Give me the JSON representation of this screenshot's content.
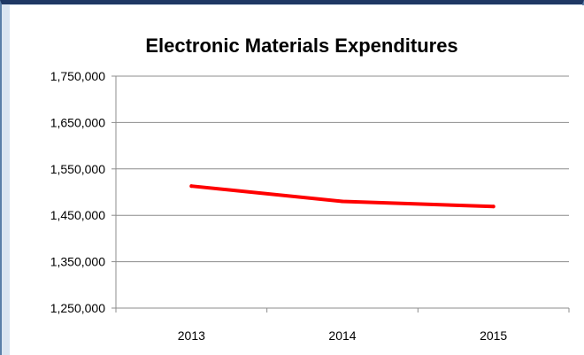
{
  "chart_data": {
    "type": "line",
    "title": "Electronic Materials Expenditures",
    "xlabel": "",
    "ylabel": "",
    "categories": [
      "2013",
      "2014",
      "2015"
    ],
    "series": [
      {
        "values": [
          1513000,
          1480000,
          1469000
        ],
        "color": "#ff0000"
      }
    ],
    "ylim": [
      1250000,
      1750000
    ],
    "yticks": [
      1250000,
      1350000,
      1450000,
      1550000,
      1650000,
      1750000
    ],
    "ytick_labels": [
      "1,250,000",
      "1,350,000",
      "1,450,000",
      "1,550,000",
      "1,650,000",
      "1,750,000"
    ],
    "grid": true,
    "legend": "none"
  }
}
